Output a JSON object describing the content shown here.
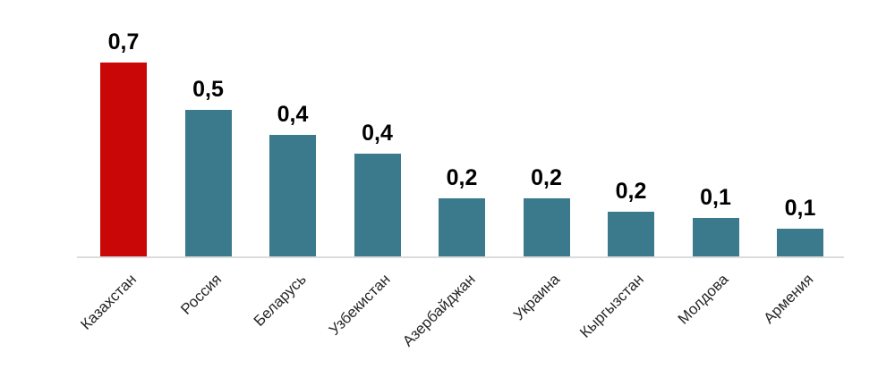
{
  "chart_data": {
    "type": "bar",
    "title": "",
    "xlabel": "",
    "ylabel": "",
    "categories": [
      "Казахстан",
      "Россия",
      "Беларусь",
      "Узбекистан",
      "Азербайджан",
      "Украина",
      "Кыргызстан",
      "Молдова",
      "Армения"
    ],
    "values": [
      0.7,
      0.5,
      0.4,
      0.4,
      0.2,
      0.2,
      0.2,
      0.1,
      0.1
    ],
    "value_labels": [
      "0,7",
      "0,5",
      "0,4",
      "0,4",
      "0,2",
      "0,2",
      "0,2",
      "0,1",
      "0,1"
    ],
    "estimated_precise_values": [
      0.7,
      0.53,
      0.44,
      0.37,
      0.21,
      0.21,
      0.16,
      0.14,
      0.1
    ],
    "decimal_separator": ",",
    "highlight_index": 0,
    "ylim": [
      0,
      0.8
    ],
    "grid": false,
    "legend": false,
    "axis_labels_rotation_deg": -45,
    "colors": {
      "highlight_bar": "#C90707",
      "default_bar": "#3A7A8C",
      "axis_line": "#DCDCDC",
      "value_label": "#000000",
      "category_label": "#262626",
      "background": "#FFFFFF"
    }
  }
}
